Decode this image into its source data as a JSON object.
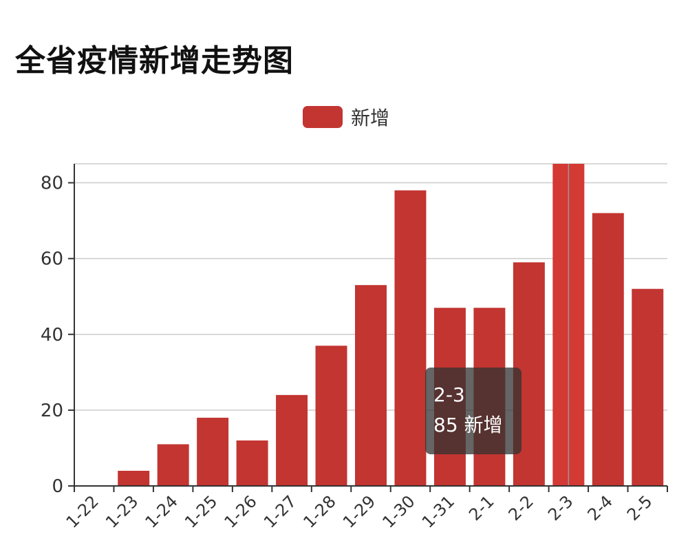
{
  "page": {
    "title": "全省疫情新增走势图"
  },
  "legend": {
    "items": [
      {
        "label": "新增",
        "color": "#c23531"
      }
    ]
  },
  "tooltip": {
    "category": "2-3",
    "value_text": "85",
    "series_name": "新增"
  },
  "chart_data": {
    "type": "bar",
    "title": "全省疫情新增走势图",
    "xlabel": "",
    "ylabel": "",
    "categories": [
      "1-22",
      "1-23",
      "1-24",
      "1-25",
      "1-26",
      "1-27",
      "1-28",
      "1-29",
      "1-30",
      "1-31",
      "2-1",
      "2-2",
      "2-3",
      "2-4",
      "2-5"
    ],
    "series": [
      {
        "name": "新增",
        "color": "#c23531",
        "highlight_color": "#d33a34",
        "values": [
          0,
          4,
          11,
          18,
          12,
          24,
          37,
          53,
          78,
          47,
          47,
          59,
          85,
          72,
          52
        ]
      }
    ],
    "ylim": [
      0,
      85
    ],
    "yticks": [
      0,
      20,
      40,
      60,
      80
    ],
    "grid": true,
    "legend_position": "top-center",
    "highlighted_category": "2-3"
  }
}
